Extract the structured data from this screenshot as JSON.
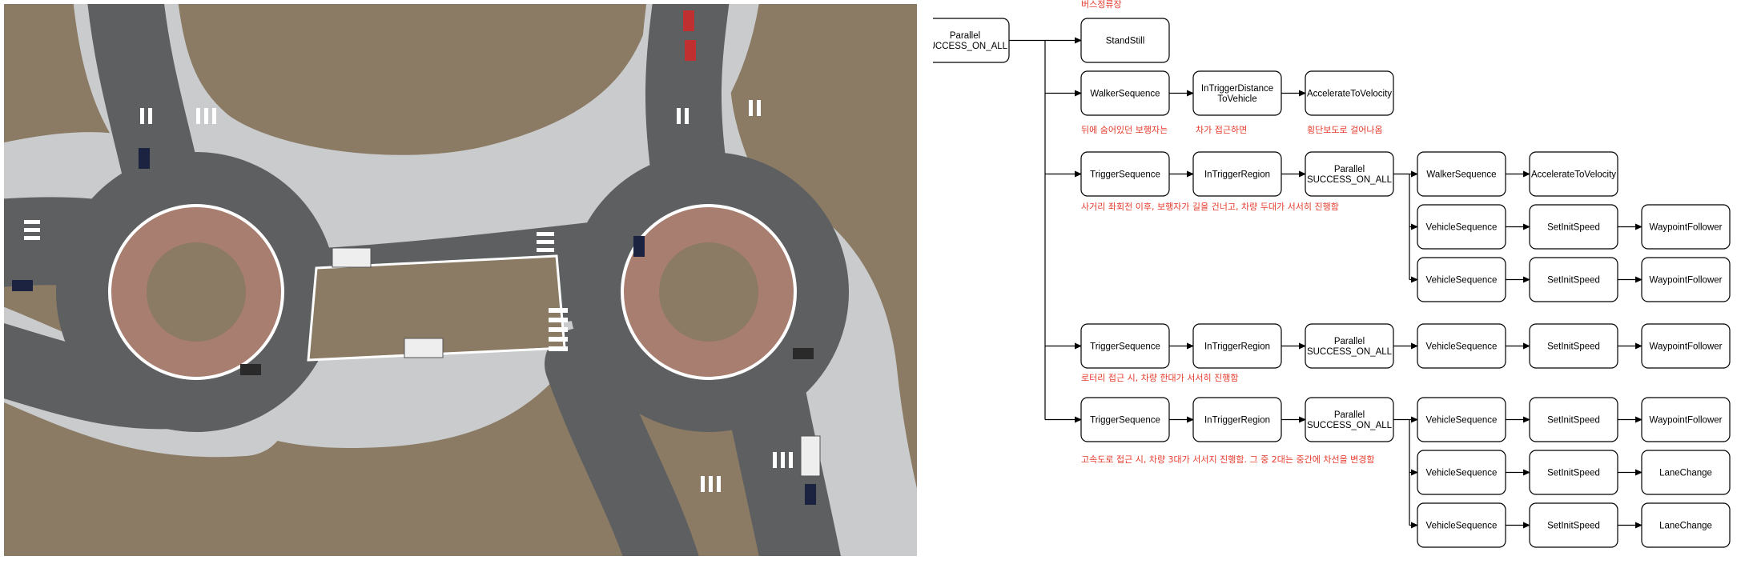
{
  "scene": {
    "description_icon": "roundabout-simulation-scene",
    "colors": {
      "ground": "#8b7a64",
      "road": "#5d5f61",
      "sidewalk": "#c9cbcc",
      "island": "#a87e70",
      "marking": "#ffffff"
    }
  },
  "diagram": {
    "colors": {
      "stroke": "#000000",
      "note": "#e53b2c",
      "fill": "#ffffff"
    },
    "nodes": [
      {
        "id": "root",
        "lines": [
          "Parallel",
          "SUCCESS_ON_ALL"
        ]
      },
      {
        "id": "standstill",
        "lines": [
          "StandStill"
        ]
      },
      {
        "id": "r1_walker",
        "lines": [
          "WalkerSequence"
        ]
      },
      {
        "id": "r1_trigger",
        "lines": [
          "InTriggerDistance",
          "ToVehicle"
        ]
      },
      {
        "id": "r1_accel",
        "lines": [
          "AccelerateToVelocity"
        ]
      },
      {
        "id": "r2_trigger_seq",
        "lines": [
          "TriggerSequence"
        ]
      },
      {
        "id": "r2_region",
        "lines": [
          "InTriggerRegion"
        ]
      },
      {
        "id": "r2_parallel",
        "lines": [
          "Parallel",
          "SUCCESS_ON_ALL"
        ]
      },
      {
        "id": "r2_walker",
        "lines": [
          "WalkerSequence"
        ]
      },
      {
        "id": "r2_accel",
        "lines": [
          "AccelerateToVelocity"
        ]
      },
      {
        "id": "r2_veh1",
        "lines": [
          "VehicleSequence"
        ]
      },
      {
        "id": "r2_speed1",
        "lines": [
          "SetInitSpeed"
        ]
      },
      {
        "id": "r2_wp1",
        "lines": [
          "WaypointFollower"
        ]
      },
      {
        "id": "r2_veh2",
        "lines": [
          "VehicleSequence"
        ]
      },
      {
        "id": "r2_speed2",
        "lines": [
          "SetInitSpeed"
        ]
      },
      {
        "id": "r2_wp2",
        "lines": [
          "WaypointFollower"
        ]
      },
      {
        "id": "r3_trigger_seq",
        "lines": [
          "TriggerSequence"
        ]
      },
      {
        "id": "r3_region",
        "lines": [
          "InTriggerRegion"
        ]
      },
      {
        "id": "r3_parallel",
        "lines": [
          "Parallel",
          "SUCCESS_ON_ALL"
        ]
      },
      {
        "id": "r3_veh",
        "lines": [
          "VehicleSequence"
        ]
      },
      {
        "id": "r3_speed",
        "lines": [
          "SetInitSpeed"
        ]
      },
      {
        "id": "r3_wp",
        "lines": [
          "WaypointFollower"
        ]
      },
      {
        "id": "r4_trigger_seq",
        "lines": [
          "TriggerSequence"
        ]
      },
      {
        "id": "r4_region",
        "lines": [
          "InTriggerRegion"
        ]
      },
      {
        "id": "r4_parallel",
        "lines": [
          "Parallel",
          "SUCCESS_ON_ALL"
        ]
      },
      {
        "id": "r4_veh1",
        "lines": [
          "VehicleSequence"
        ]
      },
      {
        "id": "r4_speed1",
        "lines": [
          "SetInitSpeed"
        ]
      },
      {
        "id": "r4_wp1",
        "lines": [
          "WaypointFollower"
        ]
      },
      {
        "id": "r4_veh2",
        "lines": [
          "VehicleSequence"
        ]
      },
      {
        "id": "r4_speed2",
        "lines": [
          "SetInitSpeed"
        ]
      },
      {
        "id": "r4_lc1",
        "lines": [
          "LaneChange"
        ]
      },
      {
        "id": "r4_veh3",
        "lines": [
          "VehicleSequence"
        ]
      },
      {
        "id": "r4_speed3",
        "lines": [
          "SetInitSpeed"
        ]
      },
      {
        "id": "r4_lc2",
        "lines": [
          "LaneChange"
        ]
      }
    ],
    "notes": [
      {
        "id": "note_bus",
        "text": "버스정류장"
      },
      {
        "id": "note_walker",
        "text": "뒤에 숨어있던 보행자는"
      },
      {
        "id": "note_approach",
        "text": "차가 접근하면"
      },
      {
        "id": "note_crosswalk",
        "text": "횡단보도로 걸어나옴"
      },
      {
        "id": "note_intersection",
        "text": "사거리 좌회전 이후, 보행자가 길을 건너고, 차량 두대가 서서히 진행함"
      },
      {
        "id": "note_rotary",
        "text": "로터리 접근 시, 차량 한대가 서서히 진행함"
      },
      {
        "id": "note_highway",
        "text": "고속도로 접근 시, 차량 3대가 서서지 진행함. 그 중 2대는 중간에 차선을 변경함"
      }
    ]
  }
}
